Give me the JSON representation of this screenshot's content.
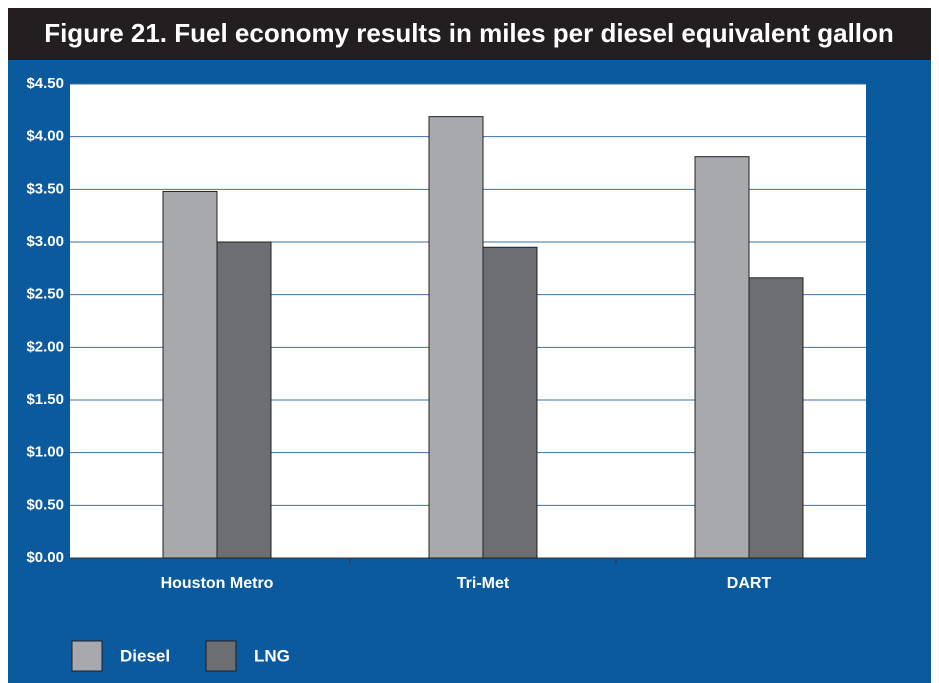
{
  "chart_data": {
    "type": "bar",
    "title": "Figure 21. Fuel economy results in miles per diesel equivalent gallon",
    "categories": [
      "Houston Metro",
      "Tri-Met",
      "DART"
    ],
    "series": [
      {
        "name": "Diesel",
        "color": "#a7a9ac",
        "values": [
          3.48,
          4.19,
          3.81
        ]
      },
      {
        "name": "LNG",
        "color": "#6d6e71",
        "values": [
          3.0,
          2.95,
          2.66
        ]
      }
    ],
    "ylim": [
      0,
      4.5
    ],
    "yticks": [
      {
        "value": 0,
        "label": "$0.00"
      },
      {
        "value": 0.5,
        "label": "$0.50"
      },
      {
        "value": 1,
        "label": "$1.00"
      },
      {
        "value": 1.5,
        "label": "$1.50"
      },
      {
        "value": 2,
        "label": "$2.00"
      },
      {
        "value": 2.5,
        "label": "$2.50"
      },
      {
        "value": 3,
        "label": "$3.00"
      },
      {
        "value": 3.5,
        "label": "$3.50"
      },
      {
        "value": 4,
        "label": "$4.00"
      },
      {
        "value": 4.5,
        "label": "$4.50"
      }
    ],
    "grid": true,
    "legend": "bottom-left"
  }
}
